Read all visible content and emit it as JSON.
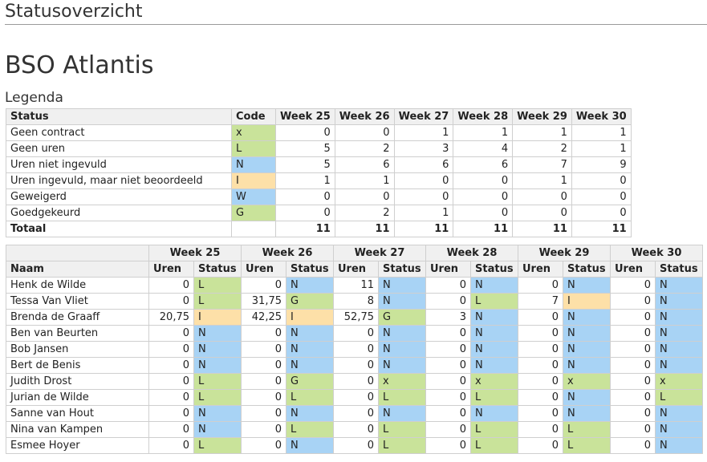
{
  "page": {
    "title": "Statusoverzicht"
  },
  "org": {
    "name": "BSO Atlantis"
  },
  "legend": {
    "title": "Legenda",
    "headers": [
      "Status",
      "Code",
      "Week 25",
      "Week 26",
      "Week 27",
      "Week 28",
      "Week 29",
      "Week 30"
    ],
    "rows": [
      {
        "status": "Geen contract",
        "code": "x",
        "counts": [
          "0",
          "0",
          "1",
          "1",
          "1",
          "1"
        ]
      },
      {
        "status": "Geen uren",
        "code": "L",
        "counts": [
          "5",
          "2",
          "3",
          "4",
          "2",
          "1"
        ]
      },
      {
        "status": "Uren niet ingevuld",
        "code": "N",
        "counts": [
          "5",
          "6",
          "6",
          "6",
          "7",
          "9"
        ]
      },
      {
        "status": "Uren ingevuld, maar niet beoordeeld",
        "code": "I",
        "counts": [
          "1",
          "1",
          "0",
          "0",
          "1",
          "0"
        ]
      },
      {
        "status": "Geweigerd",
        "code": "W",
        "counts": [
          "0",
          "0",
          "0",
          "0",
          "0",
          "0"
        ]
      },
      {
        "status": "Goedgekeurd",
        "code": "G",
        "counts": [
          "0",
          "2",
          "1",
          "0",
          "0",
          "0"
        ]
      }
    ],
    "total": {
      "label": "Totaal",
      "counts": [
        "11",
        "11",
        "11",
        "11",
        "11",
        "11"
      ]
    }
  },
  "overview": {
    "name_header": "Naam",
    "hours_header": "Uren",
    "status_header": "Status",
    "weeks": [
      "Week 25",
      "Week 26",
      "Week 27",
      "Week 28",
      "Week 29",
      "Week 30"
    ],
    "rows": [
      {
        "name": "Henk de Wilde",
        "cells": [
          [
            "0",
            "L"
          ],
          [
            "0",
            "N"
          ],
          [
            "11",
            "N"
          ],
          [
            "0",
            "N"
          ],
          [
            "0",
            "N"
          ],
          [
            "0",
            "N"
          ]
        ]
      },
      {
        "name": "Tessa Van Vliet",
        "cells": [
          [
            "0",
            "L"
          ],
          [
            "31,75",
            "G"
          ],
          [
            "8",
            "N"
          ],
          [
            "0",
            "L"
          ],
          [
            "7",
            "I"
          ],
          [
            "0",
            "N"
          ]
        ]
      },
      {
        "name": "Brenda de Graaff",
        "cells": [
          [
            "20,75",
            "I"
          ],
          [
            "42,25",
            "I"
          ],
          [
            "52,75",
            "G"
          ],
          [
            "3",
            "N"
          ],
          [
            "0",
            "N"
          ],
          [
            "0",
            "N"
          ]
        ]
      },
      {
        "name": "Ben van Beurten",
        "cells": [
          [
            "0",
            "N"
          ],
          [
            "0",
            "N"
          ],
          [
            "0",
            "N"
          ],
          [
            "0",
            "N"
          ],
          [
            "0",
            "N"
          ],
          [
            "0",
            "N"
          ]
        ]
      },
      {
        "name": "Bob Jansen",
        "cells": [
          [
            "0",
            "N"
          ],
          [
            "0",
            "N"
          ],
          [
            "0",
            "N"
          ],
          [
            "0",
            "N"
          ],
          [
            "0",
            "N"
          ],
          [
            "0",
            "N"
          ]
        ]
      },
      {
        "name": "Bert de Benis",
        "cells": [
          [
            "0",
            "N"
          ],
          [
            "0",
            "N"
          ],
          [
            "0",
            "N"
          ],
          [
            "0",
            "N"
          ],
          [
            "0",
            "N"
          ],
          [
            "0",
            "N"
          ]
        ]
      },
      {
        "name": "Judith Drost",
        "cells": [
          [
            "0",
            "L"
          ],
          [
            "0",
            "G"
          ],
          [
            "0",
            "x"
          ],
          [
            "0",
            "x"
          ],
          [
            "0",
            "x"
          ],
          [
            "0",
            "x"
          ]
        ]
      },
      {
        "name": "Jurian de Wilde",
        "cells": [
          [
            "0",
            "L"
          ],
          [
            "0",
            "L"
          ],
          [
            "0",
            "L"
          ],
          [
            "0",
            "L"
          ],
          [
            "0",
            "N"
          ],
          [
            "0",
            "L"
          ]
        ]
      },
      {
        "name": "Sanne van Hout",
        "cells": [
          [
            "0",
            "N"
          ],
          [
            "0",
            "N"
          ],
          [
            "0",
            "N"
          ],
          [
            "0",
            "N"
          ],
          [
            "0",
            "N"
          ],
          [
            "0",
            "N"
          ]
        ]
      },
      {
        "name": "Nina van Kampen",
        "cells": [
          [
            "0",
            "N"
          ],
          [
            "0",
            "L"
          ],
          [
            "0",
            "L"
          ],
          [
            "0",
            "L"
          ],
          [
            "0",
            "L"
          ],
          [
            "0",
            "N"
          ]
        ]
      },
      {
        "name": "Esmee Hoyer",
        "cells": [
          [
            "0",
            "L"
          ],
          [
            "0",
            "N"
          ],
          [
            "0",
            "L"
          ],
          [
            "0",
            "L"
          ],
          [
            "0",
            "L"
          ],
          [
            "0",
            "N"
          ]
        ]
      }
    ]
  },
  "colors": {
    "green_status": "#c9e39a",
    "blue_status": "#a8d3f5",
    "orange_status": "#fde0a8",
    "header_bg": "#f0f0f0"
  }
}
